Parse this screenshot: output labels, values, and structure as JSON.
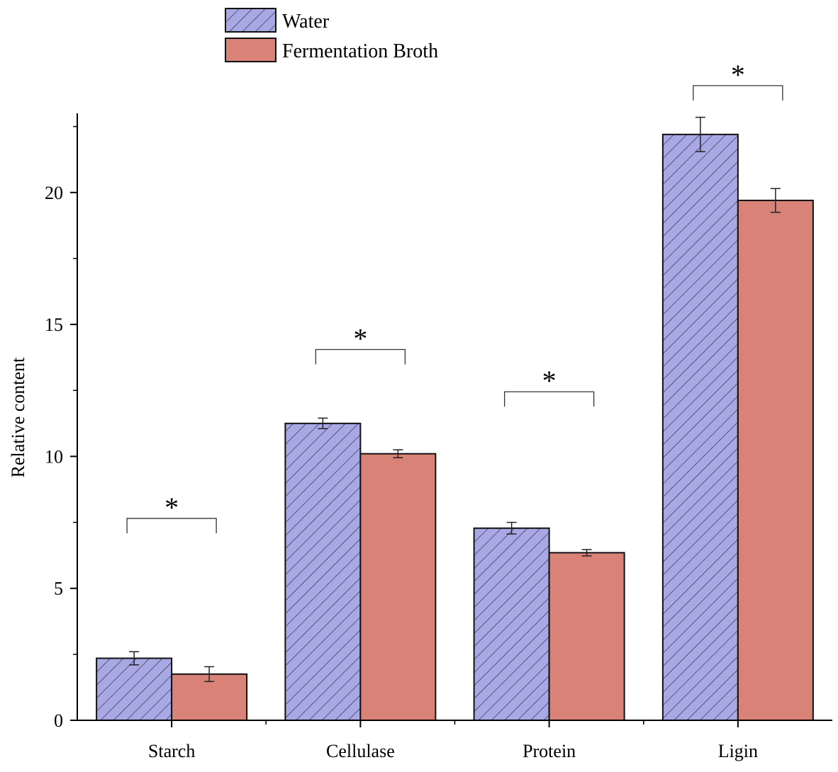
{
  "chart_data": {
    "type": "bar",
    "title": "",
    "xlabel": "",
    "ylabel": "Relative content",
    "categories": [
      "Starch",
      "Cellulase",
      "Protein",
      "Ligin"
    ],
    "series": [
      {
        "name": "Water",
        "values": [
          2.35,
          11.25,
          7.28,
          22.2
        ],
        "errors": [
          0.25,
          0.2,
          0.22,
          0.65
        ],
        "color": "#a8a8e4",
        "pattern": "hatch"
      },
      {
        "name": "Fermentation Broth",
        "values": [
          1.75,
          10.1,
          6.35,
          19.7
        ],
        "errors": [
          0.28,
          0.15,
          0.12,
          0.45
        ],
        "color": "#d98378",
        "pattern": "solid"
      }
    ],
    "ylim": [
      0,
      23
    ],
    "yticks": [
      0,
      5,
      10,
      15,
      20
    ],
    "yticks_minor_step": 2.5,
    "grid": false,
    "legend_position": "top",
    "annotations": [
      {
        "category": "Starch",
        "text": "*",
        "bracket_value": 7.65
      },
      {
        "category": "Cellulase",
        "text": "*",
        "bracket_value": 14.05
      },
      {
        "category": "Protein",
        "text": "*",
        "bracket_value": 12.45
      },
      {
        "category": "Ligin",
        "text": "*",
        "bracket_value": 24.05
      }
    ]
  }
}
